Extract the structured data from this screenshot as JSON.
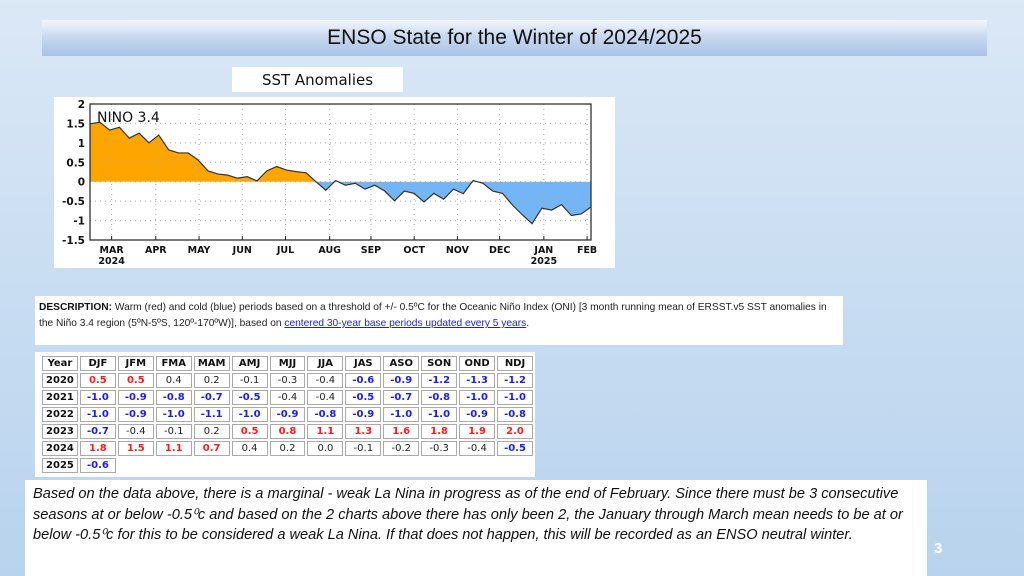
{
  "title": "ENSO State for the Winter of 2024/2025",
  "chart_label": "SST Anomalies",
  "chart_data": {
    "type": "area",
    "title": "NINO 3.4",
    "xlabel": "",
    "ylabel": "",
    "ylim": [
      -1.5,
      2
    ],
    "yticks": [
      "2",
      "1.5",
      "1",
      "0.5",
      "0",
      "-0.5",
      "-1",
      "-1.5"
    ],
    "ytick_values": [
      2,
      1.5,
      1,
      0.5,
      0,
      -0.5,
      -1,
      -1.5
    ],
    "xticks": [
      {
        "label": "MAR",
        "sub": "2024",
        "week": 2.2
      },
      {
        "label": "APR",
        "sub": "",
        "week": 6.7
      },
      {
        "label": "MAY",
        "sub": "",
        "week": 11.1
      },
      {
        "label": "JUN",
        "sub": "",
        "week": 15.5
      },
      {
        "label": "JUL",
        "sub": "",
        "week": 19.9
      },
      {
        "label": "AUG",
        "sub": "",
        "week": 24.4
      },
      {
        "label": "SEP",
        "sub": "",
        "week": 28.6
      },
      {
        "label": "OCT",
        "sub": "",
        "week": 33.0
      },
      {
        "label": "NOV",
        "sub": "",
        "week": 37.4
      },
      {
        "label": "DEC",
        "sub": "",
        "week": 41.7
      },
      {
        "label": "JAN",
        "sub": "2025",
        "week": 46.2
      },
      {
        "label": "FEB",
        "sub": "",
        "week": 50.6
      }
    ],
    "grid": true,
    "positive_color": "#ffa500",
    "negative_color": "#73b5f5",
    "values": [
      1.49,
      1.53,
      1.33,
      1.4,
      1.12,
      1.25,
      1.0,
      1.2,
      0.82,
      0.74,
      0.74,
      0.56,
      0.28,
      0.2,
      0.17,
      0.09,
      0.13,
      0.02,
      0.28,
      0.39,
      0.3,
      0.26,
      0.23,
      0.0,
      -0.22,
      0.03,
      -0.09,
      -0.04,
      -0.19,
      -0.09,
      -0.24,
      -0.49,
      -0.24,
      -0.3,
      -0.52,
      -0.3,
      -0.45,
      -0.19,
      -0.31,
      0.03,
      -0.04,
      -0.24,
      -0.3,
      -0.6,
      -0.85,
      -1.08,
      -0.68,
      -0.73,
      -0.59,
      -0.87,
      -0.83,
      -0.65
    ]
  },
  "description": {
    "label": "DESCRIPTION:",
    "text": " Warm (red) and cold (blue) periods based on a threshold of +/- 0.5ºC for the Oceanic Niño Index (ONI) [3 month running mean of ERSST.v5 SST anomalies in the Niño 3.4 region (5ºN-5ºS, 120º-170ºW)], based on ",
    "link": "centered 30-year base periods updated every 5 years",
    "end": "."
  },
  "oni_table": {
    "headers": [
      "Year",
      "DJF",
      "JFM",
      "FMA",
      "MAM",
      "AMJ",
      "MJJ",
      "JJA",
      "JAS",
      "ASO",
      "SON",
      "OND",
      "NDJ"
    ],
    "rows": [
      {
        "year": "2020",
        "values": [
          "0.5",
          "0.5",
          "0.4",
          "0.2",
          "-0.1",
          "-0.3",
          "-0.4",
          "-0.6",
          "-0.9",
          "-1.2",
          "-1.3",
          "-1.2"
        ]
      },
      {
        "year": "2021",
        "values": [
          "-1.0",
          "-0.9",
          "-0.8",
          "-0.7",
          "-0.5",
          "-0.4",
          "-0.4",
          "-0.5",
          "-0.7",
          "-0.8",
          "-1.0",
          "-1.0"
        ]
      },
      {
        "year": "2022",
        "values": [
          "-1.0",
          "-0.9",
          "-1.0",
          "-1.1",
          "-1.0",
          "-0.9",
          "-0.8",
          "-0.9",
          "-1.0",
          "-1.0",
          "-0.9",
          "-0.8"
        ]
      },
      {
        "year": "2023",
        "values": [
          "-0.7",
          "-0.4",
          "-0.1",
          "0.2",
          "0.5",
          "0.8",
          "1.1",
          "1.3",
          "1.6",
          "1.8",
          "1.9",
          "2.0"
        ]
      },
      {
        "year": "2024",
        "values": [
          "1.8",
          "1.5",
          "1.1",
          "0.7",
          "0.4",
          "0.2",
          "0.0",
          "-0.1",
          "-0.2",
          "-0.3",
          "-0.4",
          "-0.5"
        ]
      },
      {
        "year": "2025",
        "values": [
          "-0.6"
        ]
      }
    ],
    "colors": {
      "warm": "#ff1a1a",
      "cold": "#1a1aff"
    }
  },
  "note": "Based on the data above, there is a marginal - weak La Nina in progress as of the end of February.  Since there must be 3 consecutive seasons at or below -0.5⁰c and based on the 2 charts above there has only been 2, the January through March mean needs to be at or below -0.5⁰c for this to be considered a weak La Nina. If that does not happen, this will be recorded as an ENSO neutral winter.",
  "page_number": "3"
}
